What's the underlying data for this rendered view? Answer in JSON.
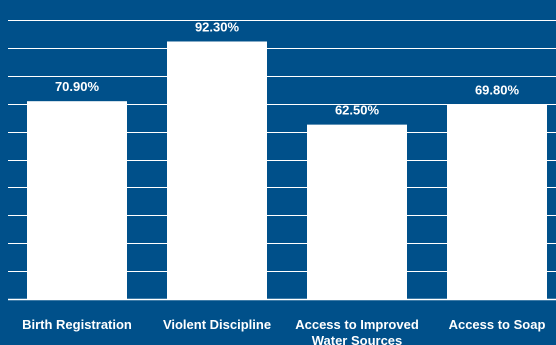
{
  "chart_data": {
    "type": "bar",
    "title": "",
    "xlabel": "",
    "ylabel": "",
    "categories": [
      "Birth Registration",
      "Violent Discipline",
      "Access to Improved Water Sources",
      "Access to Soap"
    ],
    "category_lines": [
      [
        "Birth Registration"
      ],
      [
        "Violent Discipline"
      ],
      [
        "Access to Improved",
        "Water Sources"
      ],
      [
        "Access to Soap"
      ]
    ],
    "values": [
      70.9,
      92.3,
      62.5,
      69.8
    ],
    "value_labels": [
      "70.90%",
      "92.30%",
      "62.50%",
      "69.80%"
    ],
    "ylim": [
      0,
      100
    ],
    "grid": true,
    "colors": {
      "background": "#00508a",
      "bar": "#ffffff",
      "grid": "#ffffff",
      "text": "#ffffff"
    }
  }
}
